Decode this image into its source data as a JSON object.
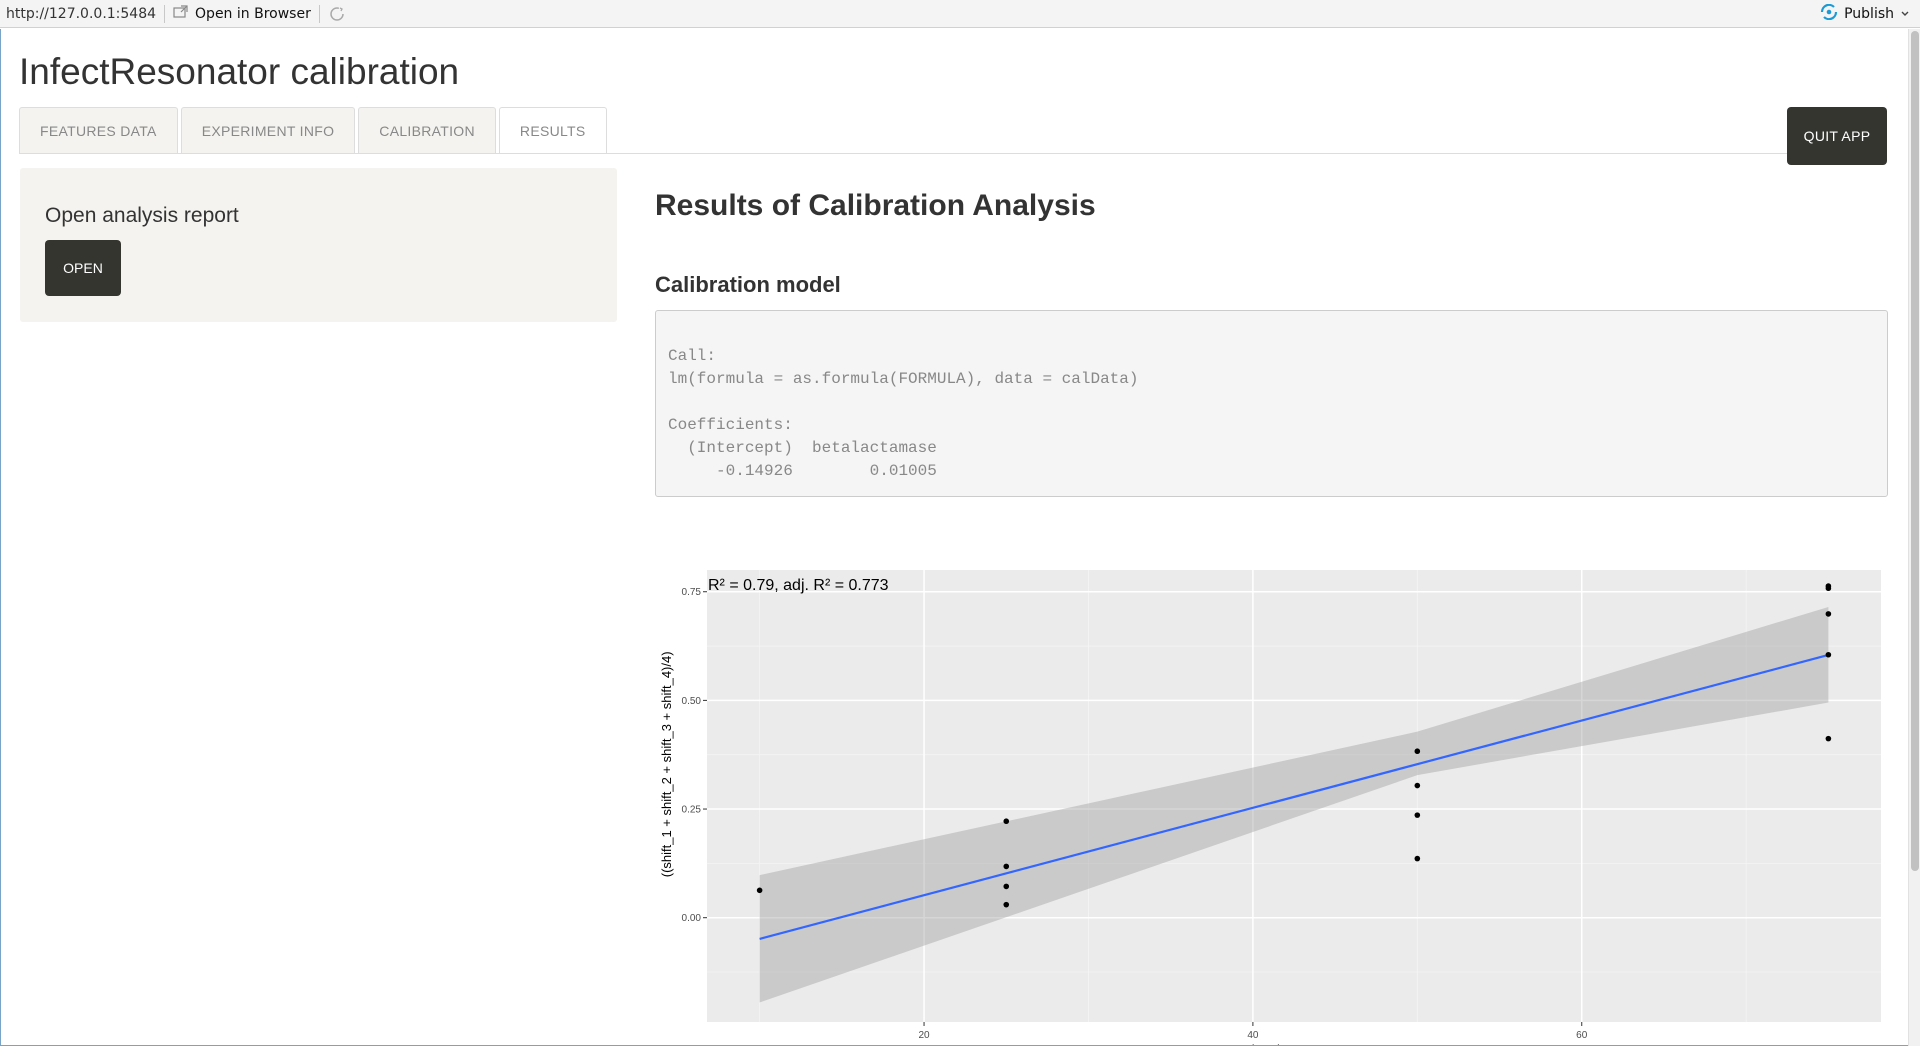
{
  "topbar": {
    "url": "http://127.0.0.1:5484",
    "open_in_browser": "Open in Browser",
    "publish": "Publish"
  },
  "app": {
    "title": "InfectResonator calibration",
    "tabs": [
      "FEATURES DATA",
      "EXPERIMENT INFO",
      "CALIBRATION",
      "RESULTS"
    ],
    "active_tab": "RESULTS",
    "quit_label": "QUIT APP"
  },
  "sidebar": {
    "heading": "Open analysis report",
    "open_label": "OPEN"
  },
  "main": {
    "title": "Results of Calibration Analysis",
    "model_heading": "Calibration model",
    "model_output": "Call:\nlm(formula = as.formula(FORMULA), data = calData)\n\nCoefficients:\n  (Intercept)  betalactamase\n     -0.14926        0.01005"
  },
  "colors": {
    "accent_dark": "#353530",
    "sidebar_bg": "#f5f3ef",
    "plot_bg": "#ebebeb",
    "ribbon": "#cccccc",
    "fit_line": "#3366ff",
    "publish_icon": "#1a9bd7"
  },
  "chart_data": {
    "type": "scatter",
    "title": "",
    "annotation": "R² = 0.79, adj. R² = 0.773",
    "xlabel": "betalactamase",
    "ylabel": "((shift_1 + shift_2 + shift_3 + shift_4)/4)",
    "xlim": [
      6.8,
      78.2
    ],
    "ylim": [
      -0.24,
      0.8
    ],
    "x_ticks": [
      20,
      40,
      60
    ],
    "y_ticks": [
      0.0,
      0.25,
      0.5,
      0.75
    ],
    "y_tick_labels": [
      "0.00",
      "0.25",
      "0.50",
      "0.75"
    ],
    "grid": true,
    "points": [
      {
        "x": 10,
        "y": 0.063
      },
      {
        "x": 25,
        "y": 0.222
      },
      {
        "x": 25,
        "y": 0.118
      },
      {
        "x": 25,
        "y": 0.072
      },
      {
        "x": 25,
        "y": 0.03
      },
      {
        "x": 50,
        "y": 0.383
      },
      {
        "x": 50,
        "y": 0.304
      },
      {
        "x": 50,
        "y": 0.236
      },
      {
        "x": 50,
        "y": 0.136
      },
      {
        "x": 75,
        "y": 0.763
      },
      {
        "x": 75,
        "y": 0.758
      },
      {
        "x": 75,
        "y": 0.699
      },
      {
        "x": 75,
        "y": 0.605
      },
      {
        "x": 75,
        "y": 0.412
      }
    ],
    "fit": {
      "intercept": -0.14926,
      "slope": 0.01005,
      "x_range": [
        10,
        75
      ]
    },
    "confidence_band": {
      "x": [
        10,
        50,
        75
      ],
      "lower": [
        -0.195,
        0.328,
        0.495
      ],
      "upper": [
        0.098,
        0.428,
        0.715
      ]
    }
  }
}
